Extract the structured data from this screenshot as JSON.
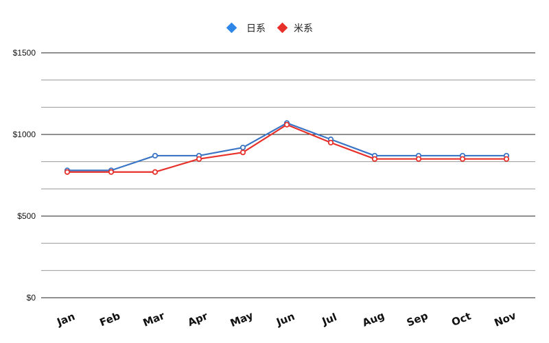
{
  "chart_data": {
    "type": "line",
    "title": "",
    "xlabel": "",
    "ylabel": "",
    "categories": [
      "Jan",
      "Feb",
      "Mar",
      "Apr",
      "May",
      "Jun",
      "Jul",
      "Aug",
      "Sep",
      "Oct",
      "Nov"
    ],
    "series": [
      {
        "name": "日系",
        "color": "#3a74c4",
        "marker_color": "#2e86e8",
        "values": [
          780,
          780,
          870,
          870,
          920,
          1070,
          970,
          870,
          870,
          870,
          870
        ]
      },
      {
        "name": "米系",
        "color": "#e8302a",
        "marker_color": "#e8302a",
        "values": [
          770,
          770,
          770,
          850,
          890,
          1060,
          950,
          850,
          850,
          850,
          850
        ]
      }
    ],
    "ylim": [
      0,
      1500
    ],
    "yticks": [
      {
        "value": 0,
        "label": "$0"
      },
      {
        "value": 500,
        "label": "$500"
      },
      {
        "value": 1000,
        "label": "$1000"
      },
      {
        "value": 1500,
        "label": "$1500"
      }
    ],
    "grid": true,
    "legend": "top-center"
  }
}
